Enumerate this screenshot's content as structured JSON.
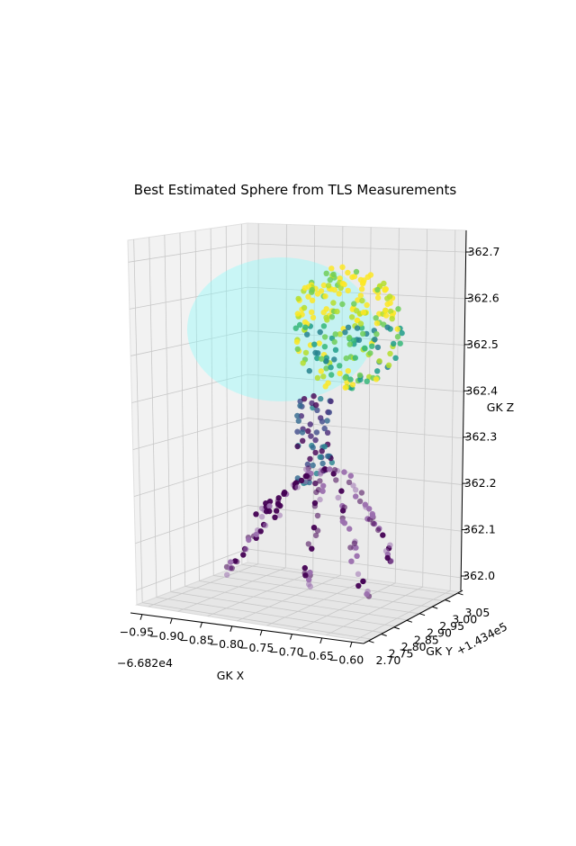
{
  "chart_data": {
    "type": "scatter",
    "title": "Best Estimated Sphere from TLS Measurements",
    "xlabel": "GK X",
    "ylabel": "GK Y",
    "zlabel": "GK Z",
    "x_offset_label": "−6.682e4",
    "y_offset_label": "+1.434e5",
    "x_ticks": [
      "−0.95",
      "−0.90",
      "−0.85",
      "−0.80",
      "−0.75",
      "−0.70",
      "−0.65",
      "−0.60"
    ],
    "y_ticks": [
      "2.70",
      "2.75",
      "2.80",
      "2.85",
      "2.90",
      "2.95",
      "3.00",
      "3.05"
    ],
    "z_ticks": [
      "362.0",
      "362.1",
      "362.2",
      "362.3",
      "362.4",
      "362.5",
      "362.6",
      "362.7"
    ],
    "xlim": [
      -0.96,
      -0.59
    ],
    "ylim": [
      2.68,
      3.07
    ],
    "zlim": [
      361.97,
      362.8
    ],
    "grid": true,
    "colormap": "viridis",
    "sphere": {
      "color": "#7fffff",
      "opacity": 0.35,
      "center_z": 362.6,
      "radius": 0.17
    },
    "series": [
      {
        "values": []
      }
    ]
  }
}
